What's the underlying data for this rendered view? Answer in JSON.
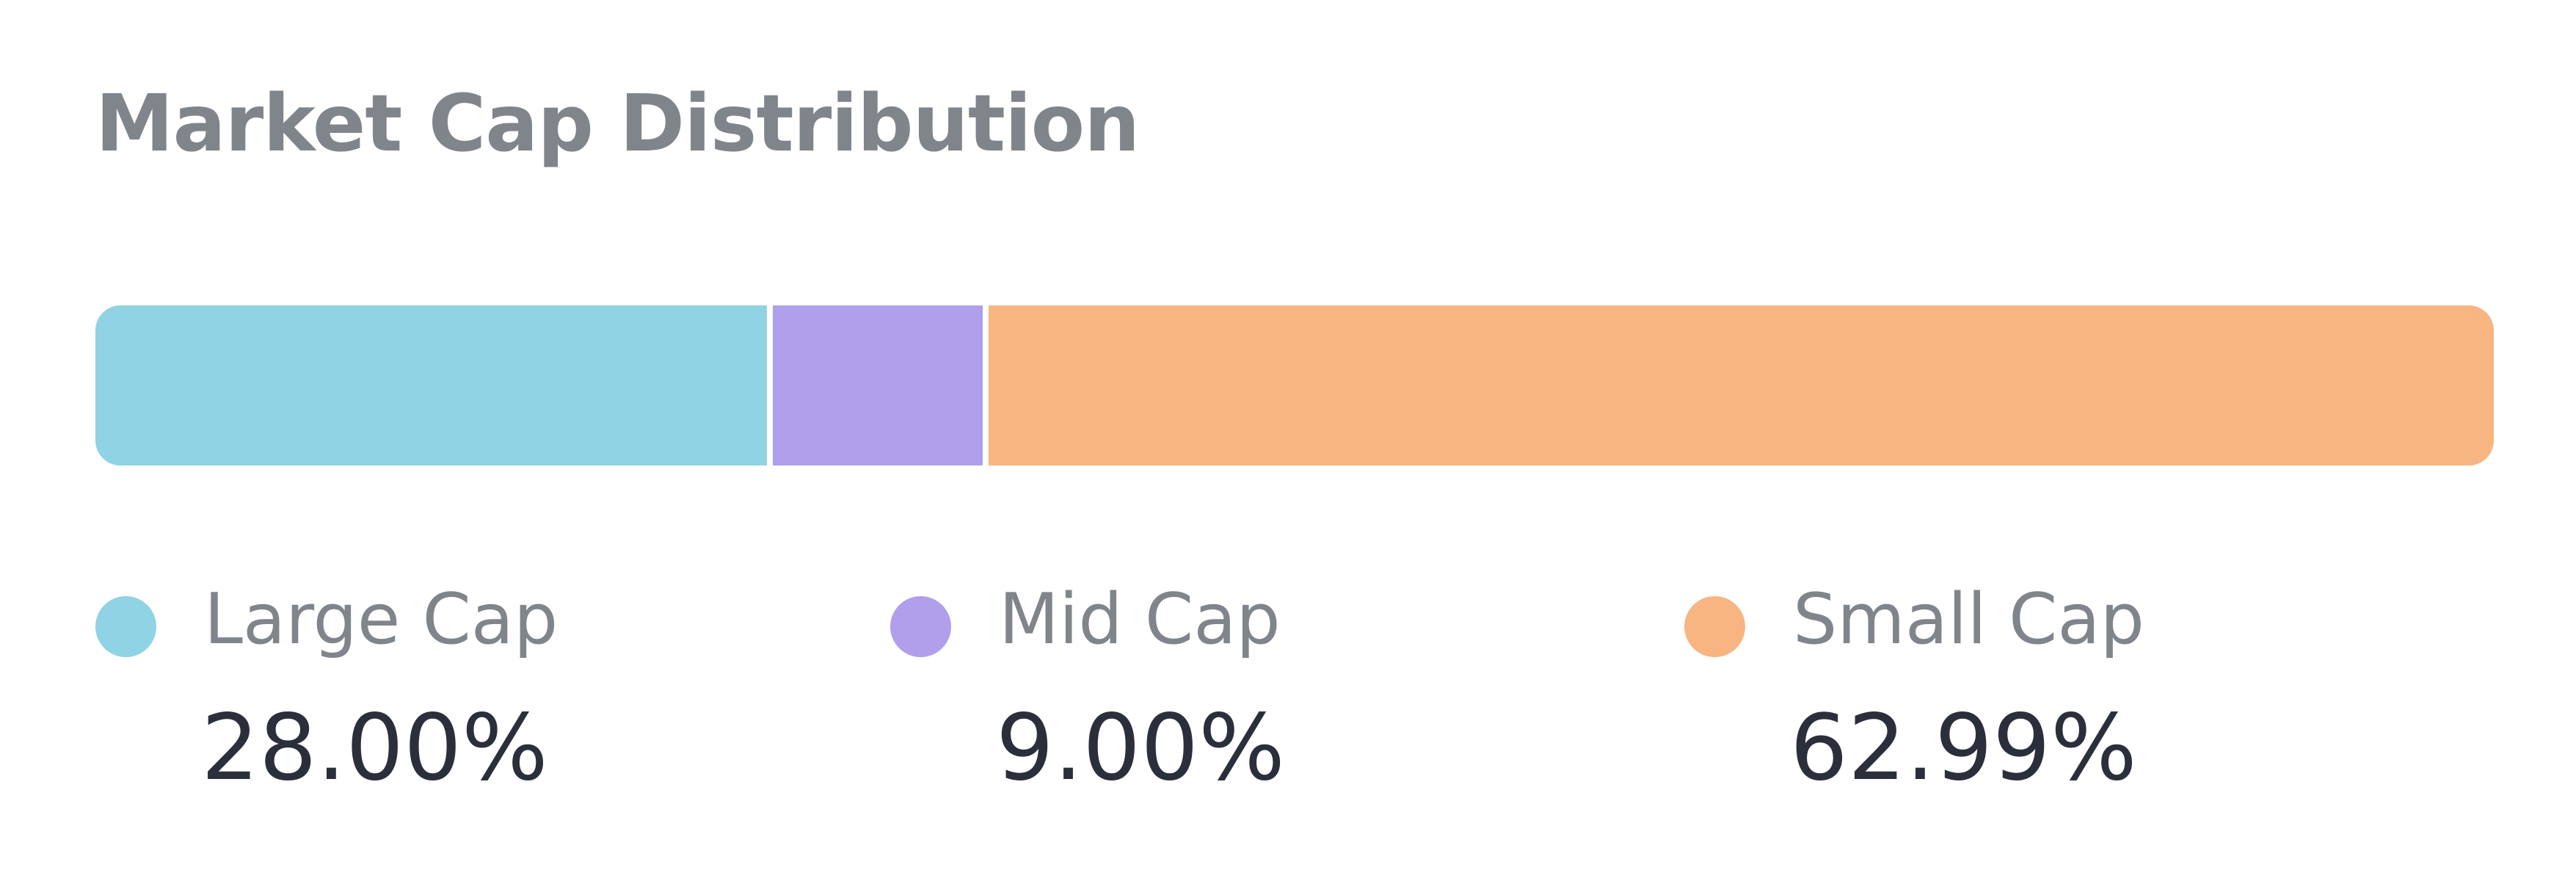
{
  "card": {
    "title": "Market Cap Distribution"
  },
  "chart_data": {
    "type": "bar",
    "title": "Market Cap Distribution",
    "orientation": "horizontal",
    "stacked": true,
    "grid": false,
    "legend_position": "bottom",
    "categories": [
      "Large Cap",
      "Mid Cap",
      "Small Cap"
    ],
    "values": [
      28.0,
      9.0,
      62.99
    ],
    "value_labels": [
      "28.00%",
      "9.00%",
      "62.99%"
    ],
    "colors": [
      "#8fd3e4",
      "#b09feb",
      "#f7b582"
    ]
  }
}
